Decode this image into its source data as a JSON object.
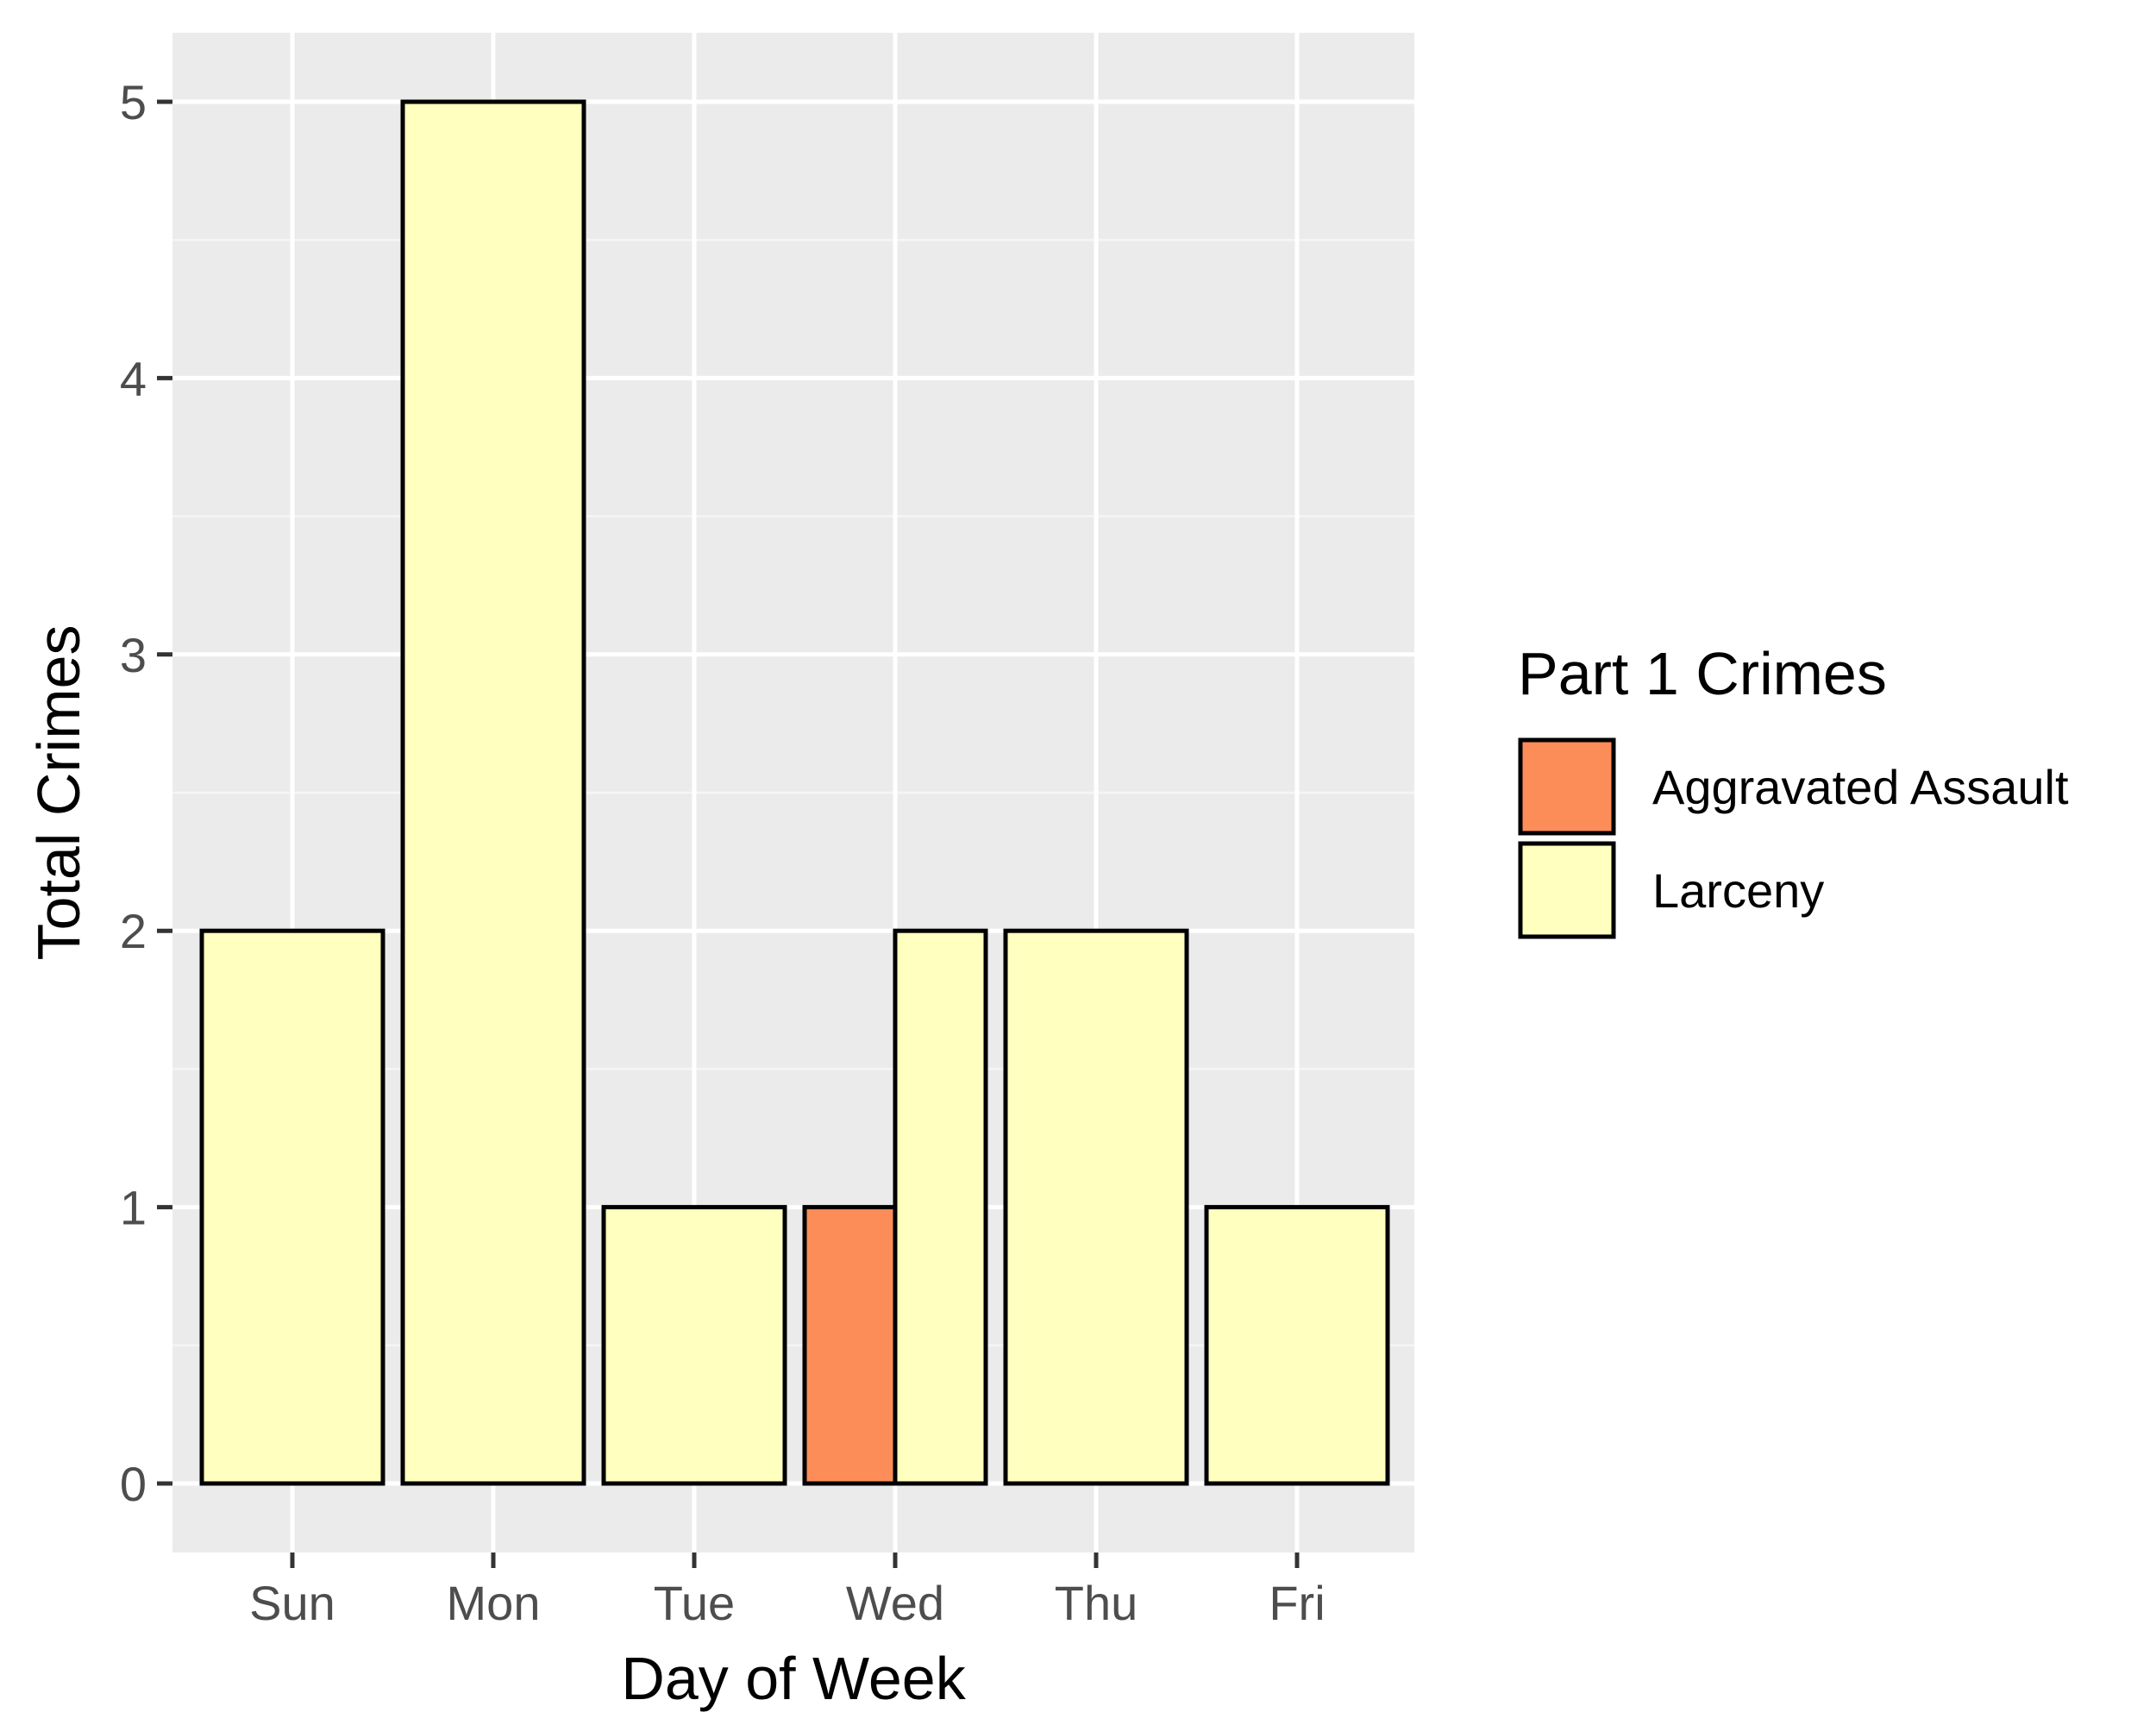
{
  "colors": {
    "panel_background": "#EBEBEB",
    "grid_major": "#FFFFFF",
    "grid_minor": "#F5F5F5",
    "bar_outline": "#000000",
    "tick_text": "#4D4D4D",
    "title_text": "#000000"
  },
  "chart_data": {
    "type": "bar",
    "layout": "dodged",
    "title": "",
    "xlabel": "Day of Week",
    "ylabel": "Total Crimes",
    "categories": [
      "Sun",
      "Mon",
      "Tue",
      "Wed",
      "Thu",
      "Fri"
    ],
    "ylim": [
      0,
      5
    ],
    "yticks": [
      0,
      1,
      2,
      3,
      4,
      5
    ],
    "grid": true,
    "legend": {
      "title": "Part 1 Crimes",
      "position": "right"
    },
    "series": [
      {
        "name": "Aggravated Assault",
        "color": "#FC8D59",
        "values": [
          null,
          null,
          null,
          1,
          null,
          null
        ]
      },
      {
        "name": "Larceny",
        "color": "#FFFFBF",
        "values": [
          2,
          5,
          1,
          2,
          2,
          1
        ]
      }
    ]
  }
}
